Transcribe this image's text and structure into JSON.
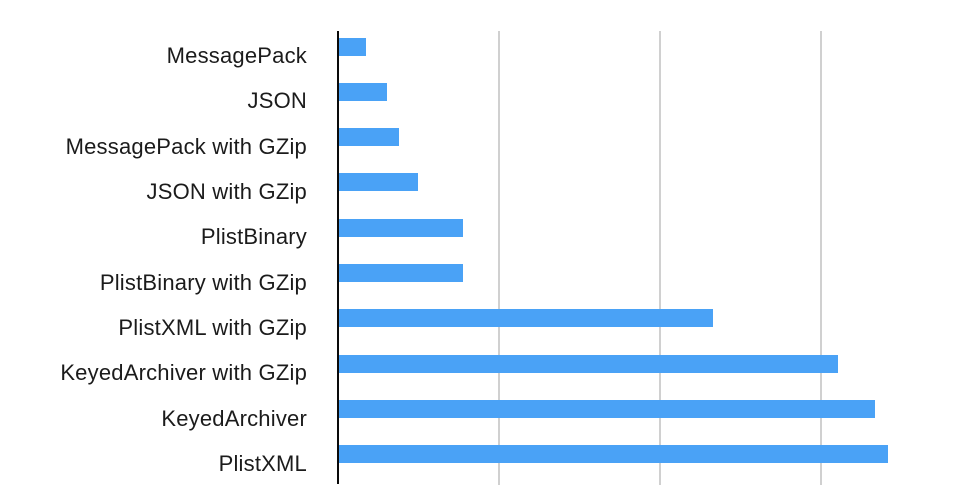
{
  "chart_data": {
    "type": "bar",
    "orientation": "horizontal",
    "title": "",
    "xlabel": "",
    "ylabel": "",
    "categories": [
      "MessagePack",
      "JSON",
      "MessagePack with GZip",
      "JSON with GZip",
      "PlistBinary",
      "PlistBinary with GZip",
      "PlistXML with GZip",
      "KeyedArchiver with GZip",
      "KeyedArchiver",
      "PlistXML"
    ],
    "values": [
      0.17,
      0.3,
      0.37,
      0.49,
      0.77,
      0.77,
      2.32,
      3.1,
      3.33,
      3.41
    ],
    "value_units": "relative (no numeric tick labels shown; values measured in gridline intervals)",
    "xlim": [
      0,
      3.95
    ],
    "gridlines_x": [
      1,
      2,
      3
    ],
    "grid": true,
    "legend": false,
    "tick_labels_visible": false,
    "colors": {
      "bar": "#4AA2F6",
      "axis": "#0A0A0A",
      "gridline": "#D0D0D0",
      "label_text": "#1B1B1B",
      "background": "#FFFFFF"
    }
  }
}
